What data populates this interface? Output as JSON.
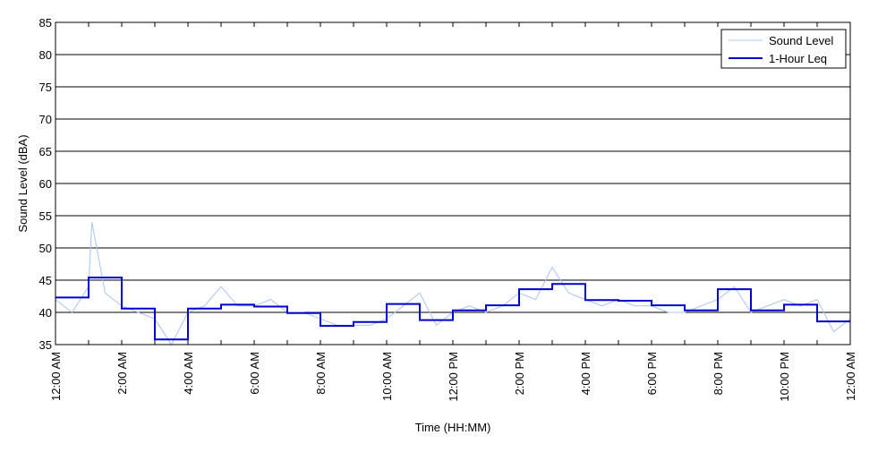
{
  "chart_data": {
    "type": "line",
    "title": "",
    "xlabel": "Time (HH:MM)",
    "ylabel": "Sound Level (dBA)",
    "xlim": [
      0,
      24
    ],
    "ylim": [
      35,
      85
    ],
    "yticks": [
      35,
      40,
      45,
      50,
      55,
      60,
      65,
      70,
      75,
      80,
      85
    ],
    "xticks": [
      {
        "hour": 0,
        "label": "12:00 AM"
      },
      {
        "hour": 2,
        "label": "2:00 AM"
      },
      {
        "hour": 4,
        "label": "4:00 AM"
      },
      {
        "hour": 6,
        "label": "6:00 AM"
      },
      {
        "hour": 8,
        "label": "8:00 AM"
      },
      {
        "hour": 10,
        "label": "10:00 AM"
      },
      {
        "hour": 12,
        "label": "12:00 PM"
      },
      {
        "hour": 14,
        "label": "2:00 PM"
      },
      {
        "hour": 16,
        "label": "4:00 PM"
      },
      {
        "hour": 18,
        "label": "6:00 PM"
      },
      {
        "hour": 20,
        "label": "8:00 PM"
      },
      {
        "hour": 22,
        "label": "10:00 PM"
      },
      {
        "hour": 24,
        "label": "12:00 AM"
      }
    ],
    "grid": "horizontal",
    "legend_position": "top-right",
    "series": [
      {
        "name": "Sound Level",
        "color": "#a9c4f5",
        "style": "thin-line",
        "x": [
          0,
          0.5,
          1,
          1.1,
          1.5,
          2,
          2.5,
          3,
          3.5,
          4,
          4.5,
          5,
          5.5,
          6,
          6.5,
          7,
          7.5,
          8,
          8.5,
          9,
          9.5,
          10,
          10.5,
          11,
          11.5,
          12,
          12.5,
          13,
          13.5,
          14,
          14.5,
          15,
          15.5,
          16,
          16.5,
          17,
          17.5,
          18,
          18.5,
          19,
          19.5,
          20,
          20.5,
          21,
          21.5,
          22,
          22.5,
          23,
          23.5,
          24
        ],
        "y": [
          42,
          40,
          44,
          54,
          43,
          41,
          40,
          39,
          35,
          40,
          41,
          44,
          41,
          41,
          42,
          40,
          40,
          39,
          38,
          38,
          38,
          39,
          41,
          43,
          38,
          40,
          41,
          40,
          41,
          43,
          42,
          47,
          43,
          42,
          41,
          42,
          41,
          41,
          40,
          40,
          41,
          42,
          44,
          40,
          41,
          42,
          41,
          42,
          37,
          39
        ]
      },
      {
        "name": "1-Hour Leq",
        "color": "#0000cc",
        "style": "step",
        "x": [
          0,
          1,
          2,
          3,
          4,
          5,
          6,
          7,
          8,
          9,
          10,
          11,
          12,
          13,
          14,
          15,
          16,
          17,
          18,
          19,
          20,
          21,
          22,
          23
        ],
        "y": [
          42.3,
          45.4,
          40.6,
          35.8,
          40.6,
          41.2,
          40.9,
          39.9,
          37.9,
          38.5,
          41.3,
          38.8,
          40.3,
          41.1,
          43.6,
          44.4,
          41.9,
          41.8,
          41.1,
          40.3,
          43.6,
          40.3,
          41.2,
          38.6
        ]
      }
    ]
  }
}
